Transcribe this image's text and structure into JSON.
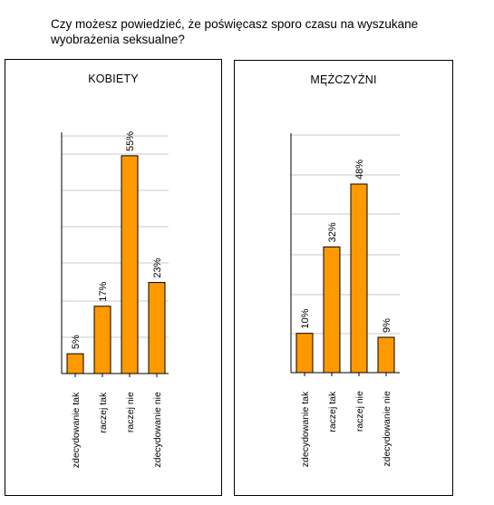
{
  "question": "Czy możesz powiedzieć, że poświęcasz sporo czasu na wyszukane wyobrażenia seksualne?",
  "colors": {
    "bar": "#FF9900",
    "bar_stroke": "#000000",
    "grid": "#c8c8c8",
    "axis": "#000000"
  },
  "chart_data": [
    {
      "type": "bar",
      "title": "KOBIETY",
      "categories": [
        "zdecydowanie tak",
        "raczej tak",
        "raczej nie",
        "zdecydowanie nie"
      ],
      "values": [
        5,
        17,
        55,
        23
      ],
      "value_labels": [
        "5%",
        "17%",
        "55%",
        "23%"
      ],
      "ylim": [
        0,
        60
      ],
      "grid": true,
      "legend": "none"
    },
    {
      "type": "bar",
      "title": "MĘŻCZYŹNI",
      "categories": [
        "zdecydowanie tak",
        "raczej tak",
        "raczej nie",
        "zdecydowanie nie"
      ],
      "values": [
        10,
        32,
        48,
        9
      ],
      "value_labels": [
        "10%",
        "32%",
        "48%",
        "9%"
      ],
      "ylim": [
        0,
        60
      ],
      "grid": true,
      "legend": "none"
    }
  ]
}
